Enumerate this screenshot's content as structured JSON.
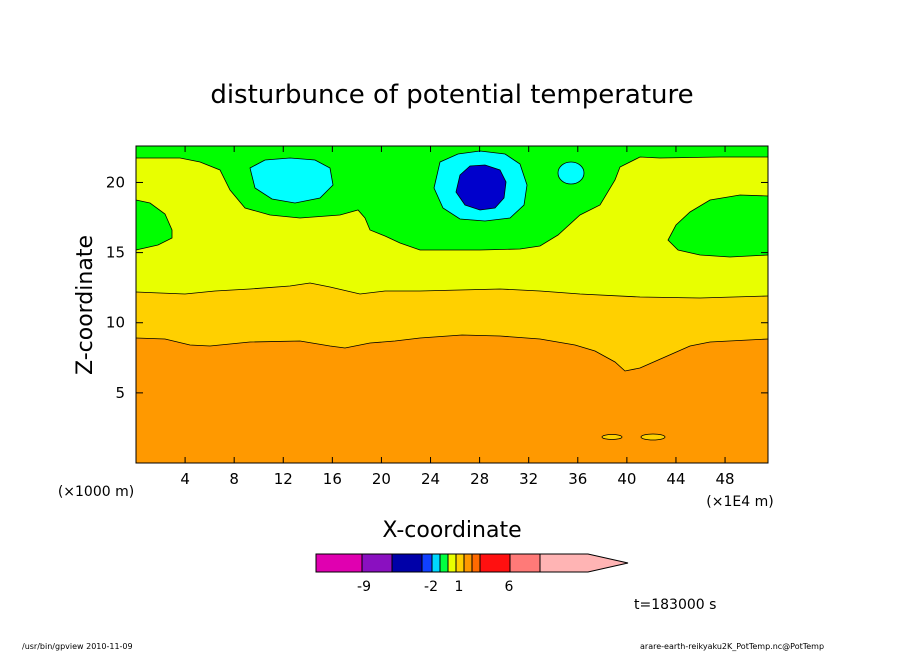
{
  "chart_data": {
    "type": "heatmap",
    "title": "disturbunce of potential temperature",
    "xlabel": "X-coordinate",
    "ylabel": "Z-coordinate",
    "x_unit_left": "(×1000 m)",
    "x_unit_right": "(×1E4 m)",
    "xlim": [
      0,
      51.5
    ],
    "ylim": [
      0,
      22.6
    ],
    "x_ticks": [
      "4",
      "8",
      "12",
      "16",
      "20",
      "24",
      "28",
      "32",
      "36",
      "40",
      "44",
      "48"
    ],
    "y_ticks": [
      "5",
      "10",
      "15",
      "20"
    ],
    "time_label": "t=183000 s",
    "colorbar": {
      "colors": [
        "#e000b0",
        "#8a10c0",
        "#0000a8",
        "#1040ff",
        "#00d8ff",
        "#00ff40",
        "#e8ff00",
        "#ffd000",
        "#ff9800",
        "#ff6a00",
        "#ff1010",
        "#ff7a78",
        "#ffb4b4"
      ],
      "labels": [
        "-9",
        "-2",
        "1",
        "6"
      ]
    },
    "contour_levels": [
      {
        "name": "orange",
        "color": "#ff9900",
        "range": "z below ~9"
      },
      {
        "name": "gold",
        "color": "#ffd000",
        "range": "z ~9 to ~12.5"
      },
      {
        "name": "yellow",
        "color": "#e8ff00",
        "range": "z ~12.5 to ~20"
      },
      {
        "name": "green",
        "color": "#00ff00",
        "range": "top band ~20 to 22.6"
      },
      {
        "name": "cyan",
        "color": "#00ffff",
        "range": "cells near x≈13, x≈28, x≈35"
      },
      {
        "name": "blue",
        "color": "#0000cc",
        "range": "core near x≈28, z≈20"
      }
    ]
  },
  "footer": {
    "left": "/usr/bin/gpview   2010-11-09",
    "right": "arare-earth-reikyaku2K_PotTemp.nc@PotTemp"
  }
}
